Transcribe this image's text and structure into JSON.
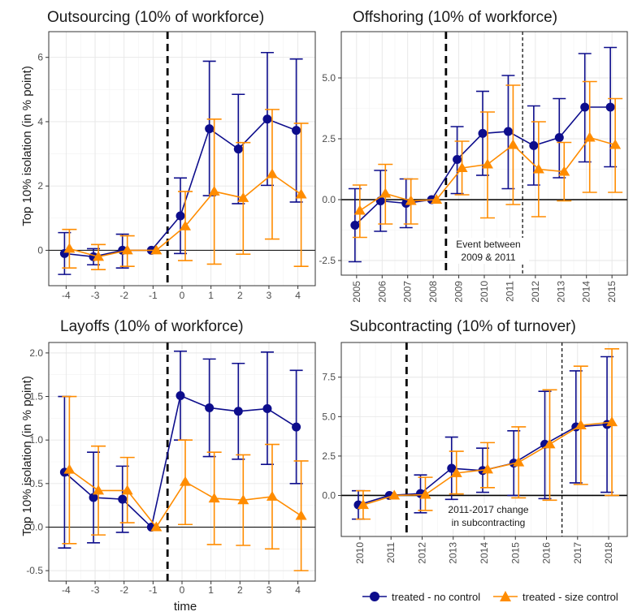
{
  "colors": {
    "no_control": "#0d0d8c",
    "size_control": "#ff8c00"
  },
  "legend": {
    "items": [
      {
        "label": "treated - no control",
        "color": "#0d0d8c",
        "marker": "circle"
      },
      {
        "label": "treated - size control",
        "color": "#ff8c00",
        "marker": "triangle"
      }
    ]
  },
  "labels": {
    "ylabel": "Top 10% isolation (in % point)",
    "xlabel": "time"
  },
  "chart_data": [
    {
      "type": "line",
      "title": "Outsourcing (10% of workforce)",
      "x": [
        "-4",
        "-3",
        "-2",
        "-1",
        "0",
        "1",
        "2",
        "3",
        "4"
      ],
      "yticks": [
        "0",
        "2",
        "4",
        "6"
      ],
      "ytick_values": [
        0,
        2,
        4,
        6
      ],
      "ylim": [
        -1.1,
        6.8
      ],
      "event_line": -0.5,
      "series": [
        {
          "name": "treated - no control",
          "values": [
            -0.1,
            -0.2,
            0.0,
            0.0,
            1.07,
            3.78,
            3.15,
            4.08,
            3.73
          ],
          "lower": [
            -0.75,
            -0.45,
            -0.55,
            0.0,
            -0.1,
            1.7,
            1.45,
            2.02,
            1.5
          ],
          "upper": [
            0.55,
            0.05,
            0.5,
            0.0,
            2.25,
            5.88,
            4.85,
            6.15,
            5.95
          ]
        },
        {
          "name": "treated - size control",
          "values": [
            0.05,
            -0.2,
            0.0,
            0.0,
            0.75,
            1.83,
            1.63,
            2.37,
            1.74
          ],
          "lower": [
            -0.55,
            -0.6,
            -0.5,
            0.0,
            -0.32,
            -0.43,
            -0.12,
            0.35,
            -0.5
          ],
          "upper": [
            0.65,
            0.18,
            0.45,
            0.0,
            1.83,
            4.08,
            3.35,
            4.38,
            3.95
          ]
        }
      ]
    },
    {
      "type": "line",
      "title": "Offshoring (10% of workforce)",
      "x": [
        "2005",
        "2006",
        "2007",
        "2008",
        "2009",
        "2010",
        "2011",
        "2012",
        "2013",
        "2014",
        "2015"
      ],
      "yticks": [
        "-2.5",
        "0.0",
        "2.5",
        "5.0"
      ],
      "ytick_values": [
        -2.5,
        0,
        2.5,
        5
      ],
      "ylim": [
        -3.1,
        6.9
      ],
      "event_line": 2008.5,
      "second_line": 2011.5,
      "annotation": [
        "Event between",
        "2009 & 2011"
      ],
      "series": [
        {
          "name": "treated - no control",
          "values": [
            -1.05,
            -0.05,
            -0.15,
            0.0,
            1.65,
            2.72,
            2.8,
            2.22,
            2.55,
            3.8,
            3.8
          ],
          "lower": [
            -2.55,
            -1.3,
            -1.15,
            0.0,
            0.25,
            1.0,
            0.45,
            0.6,
            0.9,
            1.55,
            1.35
          ],
          "upper": [
            0.45,
            1.2,
            0.85,
            0.0,
            3.0,
            4.45,
            5.1,
            3.85,
            4.15,
            6.0,
            6.25
          ]
        },
        {
          "name": "treated - size control",
          "values": [
            -0.45,
            0.25,
            -0.05,
            0.0,
            1.3,
            1.45,
            2.25,
            1.25,
            1.15,
            2.55,
            2.25
          ],
          "lower": [
            -1.55,
            -1.0,
            -1.0,
            0.0,
            0.2,
            -0.75,
            -0.2,
            -0.7,
            -0.05,
            0.3,
            0.3
          ],
          "upper": [
            0.6,
            1.45,
            0.85,
            0.0,
            2.4,
            3.6,
            4.7,
            3.2,
            2.35,
            4.85,
            4.15
          ]
        }
      ]
    },
    {
      "type": "line",
      "title": "Layoffs (10% of workforce)",
      "x": [
        "-4",
        "-3",
        "-2",
        "-1",
        "0",
        "1",
        "2",
        "3",
        "4"
      ],
      "yticks": [
        "-0.5",
        "0.0",
        "0.5",
        "1.0",
        "1.5",
        "2.0"
      ],
      "ytick_values": [
        -0.5,
        0,
        0.5,
        1,
        1.5,
        2
      ],
      "ylim": [
        -0.62,
        2.12
      ],
      "event_line": -0.5,
      "series": [
        {
          "name": "treated - no control",
          "values": [
            0.63,
            0.34,
            0.32,
            0.0,
            1.51,
            1.37,
            1.33,
            1.36,
            1.15
          ],
          "lower": [
            -0.24,
            -0.18,
            -0.06,
            0.0,
            1.0,
            0.81,
            0.78,
            0.72,
            0.5
          ],
          "upper": [
            1.5,
            0.86,
            0.7,
            0.0,
            2.02,
            1.93,
            1.88,
            2.01,
            1.8
          ]
        },
        {
          "name": "treated - size control",
          "values": [
            0.66,
            0.42,
            0.42,
            0.0,
            0.52,
            0.33,
            0.31,
            0.35,
            0.13
          ],
          "lower": [
            -0.19,
            -0.09,
            0.05,
            0.0,
            0.03,
            -0.2,
            -0.21,
            -0.25,
            -0.5
          ],
          "upper": [
            1.5,
            0.93,
            0.8,
            0.0,
            1.0,
            0.86,
            0.83,
            0.95,
            0.76
          ]
        }
      ]
    },
    {
      "type": "line",
      "title": "Subcontracting (10% of turnover)",
      "x": [
        "2010",
        "2011",
        "2012",
        "2013",
        "2014",
        "2015",
        "2016",
        "2017",
        "2018"
      ],
      "yticks": [
        "0.0",
        "2.5",
        "5.0",
        "7.5"
      ],
      "ytick_values": [
        0,
        2.5,
        5,
        7.5
      ],
      "ylim": [
        -2.6,
        9.7
      ],
      "event_line": 2011.5,
      "second_line": 2016.5,
      "annotation": [
        "2011-2017 change",
        "in subcontracting"
      ],
      "series": [
        {
          "name": "treated - no control",
          "values": [
            -0.6,
            0.0,
            0.12,
            1.72,
            1.58,
            2.05,
            3.25,
            4.35,
            4.5
          ],
          "lower": [
            -1.5,
            0.0,
            -1.1,
            -0.25,
            0.2,
            0.0,
            -0.2,
            0.8,
            0.2
          ],
          "upper": [
            0.3,
            0.0,
            1.3,
            3.7,
            3.0,
            4.1,
            6.6,
            7.9,
            8.8
          ]
        },
        {
          "name": "treated - size control",
          "values": [
            -0.6,
            0.0,
            0.05,
            1.42,
            1.65,
            2.1,
            3.25,
            4.45,
            4.65
          ],
          "lower": [
            -1.5,
            0.0,
            -0.95,
            0.1,
            0.5,
            -0.15,
            -0.3,
            0.7,
            0.0
          ],
          "upper": [
            0.3,
            0.0,
            1.15,
            2.8,
            3.35,
            4.35,
            6.7,
            8.2,
            9.3
          ]
        }
      ]
    }
  ]
}
